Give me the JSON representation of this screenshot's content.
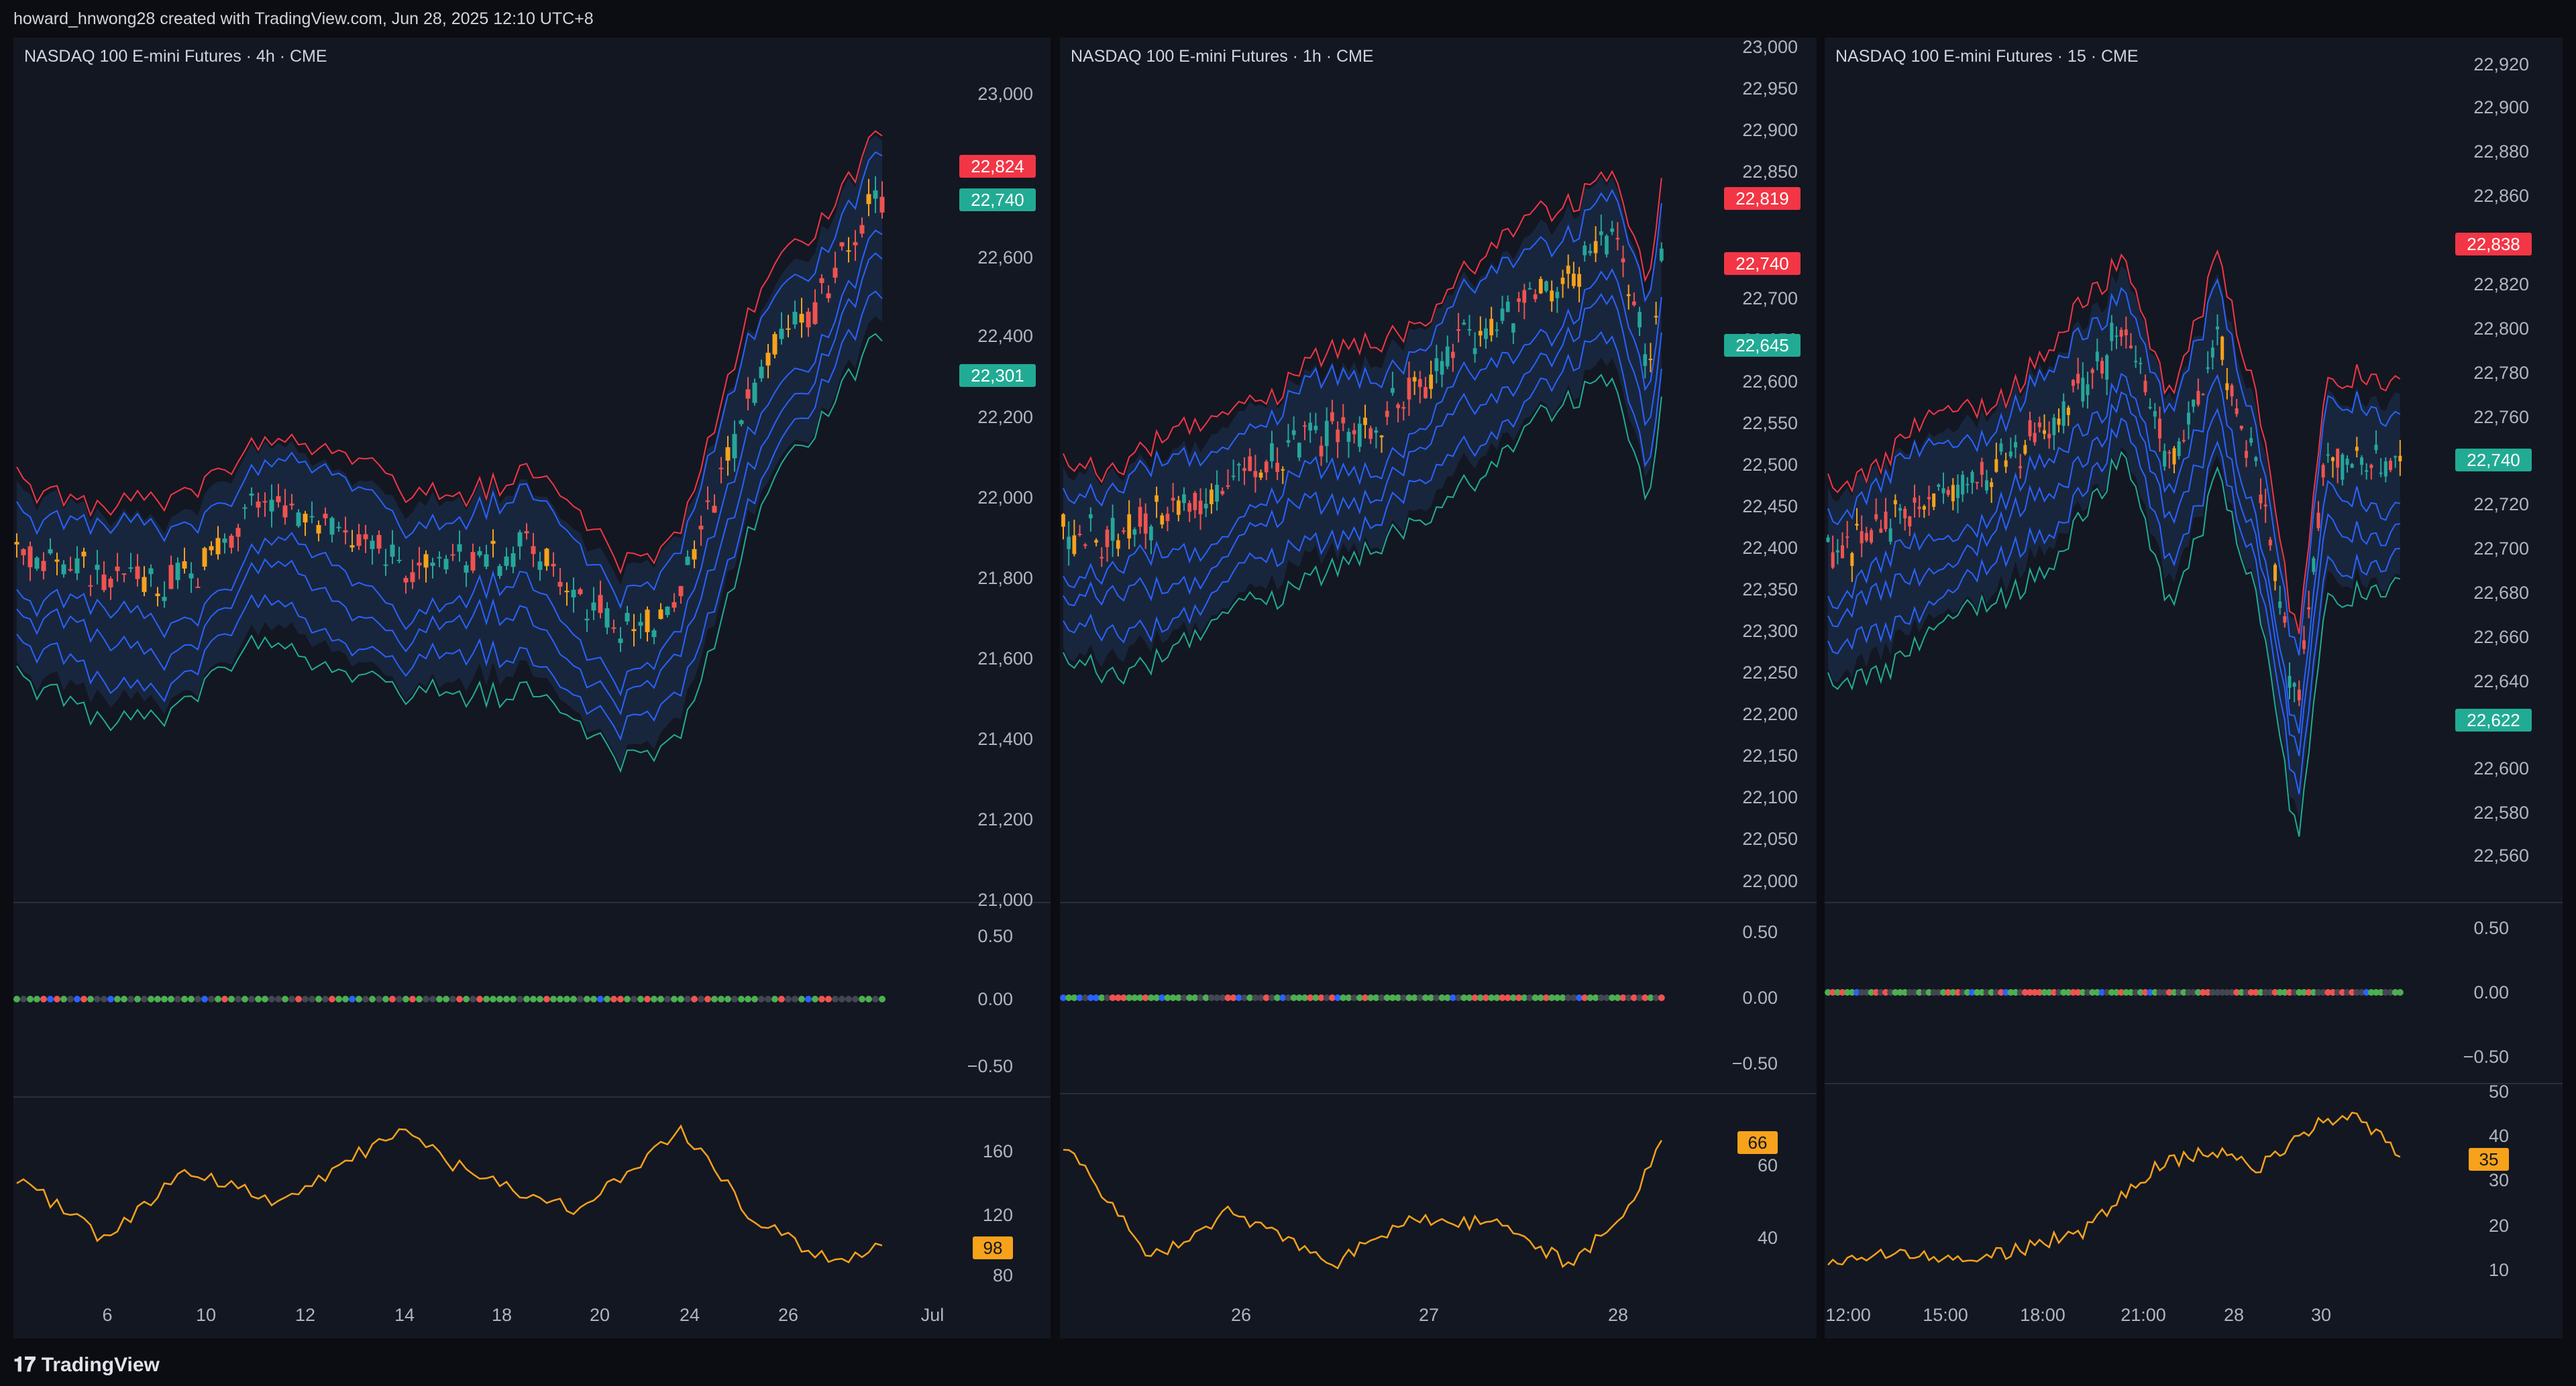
{
  "header": {
    "text": "howard_hnwong28 created with TradingView.com, Jun 28, 2025 12:10 UTC+8"
  },
  "footer": {
    "brand": "TradingView"
  },
  "colors": {
    "bg": "#131722",
    "up": "#26a69a",
    "down": "#ef5350",
    "orange": "#f7a21b",
    "blue": "#2962ff",
    "red": "#f23645",
    "green": "#22ab94"
  },
  "panels": [
    {
      "title": "NASDAQ 100 E-mini Futures · 4h · CME",
      "price_ticks": [
        "23,000",
        "22,600",
        "22,400",
        "22,200",
        "22,000",
        "21,800",
        "21,600",
        "21,400",
        "21,200",
        "21,000"
      ],
      "price_badges": [
        {
          "text": "22,824",
          "color": "red"
        },
        {
          "text": "22,740",
          "color": "green"
        },
        {
          "text": "22,301",
          "color": "green"
        }
      ],
      "ind1_ticks": [
        "0.50",
        "0.00",
        "−0.50"
      ],
      "ind2_ticks": [
        "160",
        "120",
        "80"
      ],
      "ind2_badge": "98",
      "date_ticks": [
        "6",
        "10",
        "12",
        "14",
        "18",
        "20",
        "24",
        "26",
        "Jul"
      ]
    },
    {
      "title": "NASDAQ 100 E-mini Futures · 1h · CME",
      "price_ticks": [
        "23,000",
        "22,950",
        "22,900",
        "22,850",
        "22,700",
        "22,650",
        "22,600",
        "22,550",
        "22,500",
        "22,450",
        "22,400",
        "22,350",
        "22,300",
        "22,250",
        "22,200",
        "22,150",
        "22,100",
        "22,050",
        "22,000"
      ],
      "price_badges": [
        {
          "text": "22,819",
          "color": "red"
        },
        {
          "text": "22,740",
          "color": "red"
        },
        {
          "text": "22,645",
          "color": "green"
        }
      ],
      "ind1_ticks": [
        "0.50",
        "0.00",
        "−0.50"
      ],
      "ind2_ticks": [
        "60",
        "40"
      ],
      "ind2_badge": "66",
      "date_ticks": [
        "26",
        "27",
        "28"
      ]
    },
    {
      "title": "NASDAQ 100 E-mini Futures · 15 · CME",
      "price_ticks": [
        "22,920",
        "22,900",
        "22,880",
        "22,860",
        "22,820",
        "22,800",
        "22,780",
        "22,760",
        "22,720",
        "22,700",
        "22,680",
        "22,660",
        "22,640",
        "22,600",
        "22,580",
        "22,560"
      ],
      "price_badges": [
        {
          "text": "22,838",
          "color": "red"
        },
        {
          "text": "22,740",
          "color": "green"
        },
        {
          "text": "22,622",
          "color": "green"
        }
      ],
      "ind1_ticks": [
        "0.50",
        "0.00",
        "−0.50"
      ],
      "ind2_ticks": [
        "50",
        "40",
        "30",
        "20",
        "10"
      ],
      "ind2_badge": "35",
      "date_ticks": [
        "12:00",
        "15:00",
        "18:00",
        "21:00",
        "28",
        "30"
      ]
    }
  ]
}
